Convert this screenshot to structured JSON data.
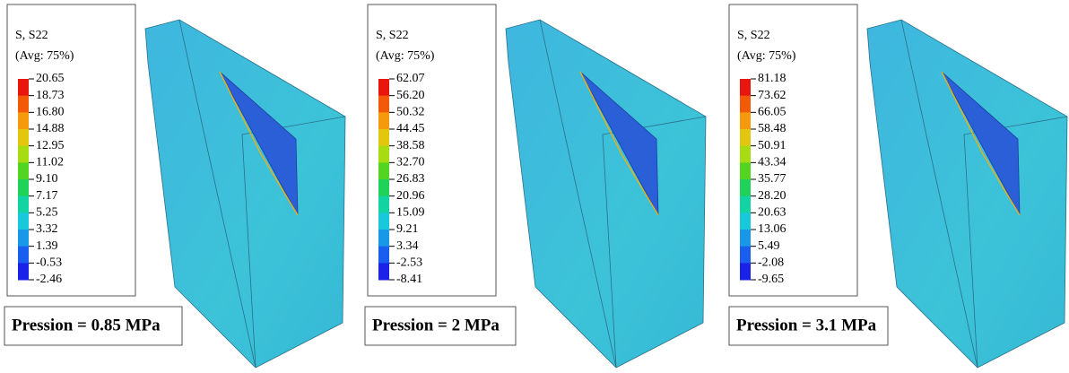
{
  "panels": [
    {
      "legend_title": "S, S22",
      "legend_subtitle": "(Avg: 75%)",
      "legend_values": [
        "20.65",
        "18.73",
        "16.80",
        "14.88",
        "12.95",
        "11.02",
        "9.10",
        "7.17",
        "5.25",
        "3.32",
        "1.39",
        "-0.53",
        "-2.46"
      ],
      "caption": "Pression = 0.85 MPa"
    },
    {
      "legend_title": "S, S22",
      "legend_subtitle": "(Avg: 75%)",
      "legend_values": [
        "62.07",
        "56.20",
        "50.32",
        "44.45",
        "38.58",
        "32.70",
        "26.83",
        "20.96",
        "15.09",
        "9.21",
        "3.34",
        "-2.53",
        "-8.41"
      ],
      "caption": "Pression = 2 MPa"
    },
    {
      "legend_title": "S, S22",
      "legend_subtitle": "(Avg: 75%)",
      "legend_values": [
        "81.18",
        "73.62",
        "66.05",
        "58.48",
        "50.91",
        "43.34",
        "35.77",
        "28.20",
        "20.63",
        "13.06",
        "5.49",
        "-2.08",
        "-9.65"
      ],
      "caption": "Pression = 3.1 MPa"
    }
  ]
}
